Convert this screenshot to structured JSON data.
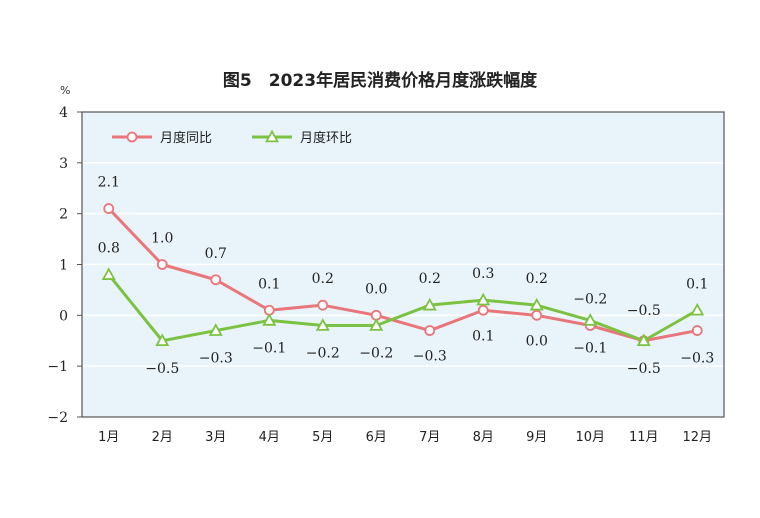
{
  "chart_data": {
    "type": "line",
    "title": "图5　2023年居民消费价格月度涨跌幅度",
    "unit": "%",
    "categories": [
      "1月",
      "2月",
      "3月",
      "4月",
      "5月",
      "6月",
      "7月",
      "8月",
      "9月",
      "10月",
      "11月",
      "12月"
    ],
    "ylim": [
      -2,
      4
    ],
    "yticks": [
      -2,
      -1,
      0,
      1,
      2,
      3,
      4
    ],
    "grid": true,
    "legend_position": "top-left",
    "series": [
      {
        "name": "月度同比",
        "color": "#e8767a",
        "marker": "circle",
        "values": [
          2.1,
          1.0,
          0.7,
          0.1,
          0.2,
          0.0,
          -0.3,
          0.1,
          0.0,
          -0.2,
          -0.5,
          -0.3
        ],
        "labels": [
          "2.1",
          "1.0",
          "0.7",
          "0.1",
          "0.2",
          "0.0",
          "-0.3",
          "0.1",
          "0.0",
          "-0.2",
          "-0.5",
          "-0.3"
        ]
      },
      {
        "name": "月度环比",
        "color": "#7cc242",
        "marker": "triangle",
        "values": [
          0.8,
          -0.5,
          -0.3,
          -0.1,
          -0.2,
          -0.2,
          0.2,
          0.3,
          0.2,
          -0.1,
          -0.5,
          0.1
        ],
        "labels": [
          "0.8",
          "-0.5",
          "-0.3",
          "-0.1",
          "-0.2",
          "-0.2",
          "0.2",
          "0.3",
          "0.2",
          "-0.1",
          "-0.5",
          "0.1"
        ]
      }
    ]
  },
  "colors": {
    "plot_background": "#e9f4fa",
    "gridline": "#ffffff",
    "frame": "#555555"
  }
}
